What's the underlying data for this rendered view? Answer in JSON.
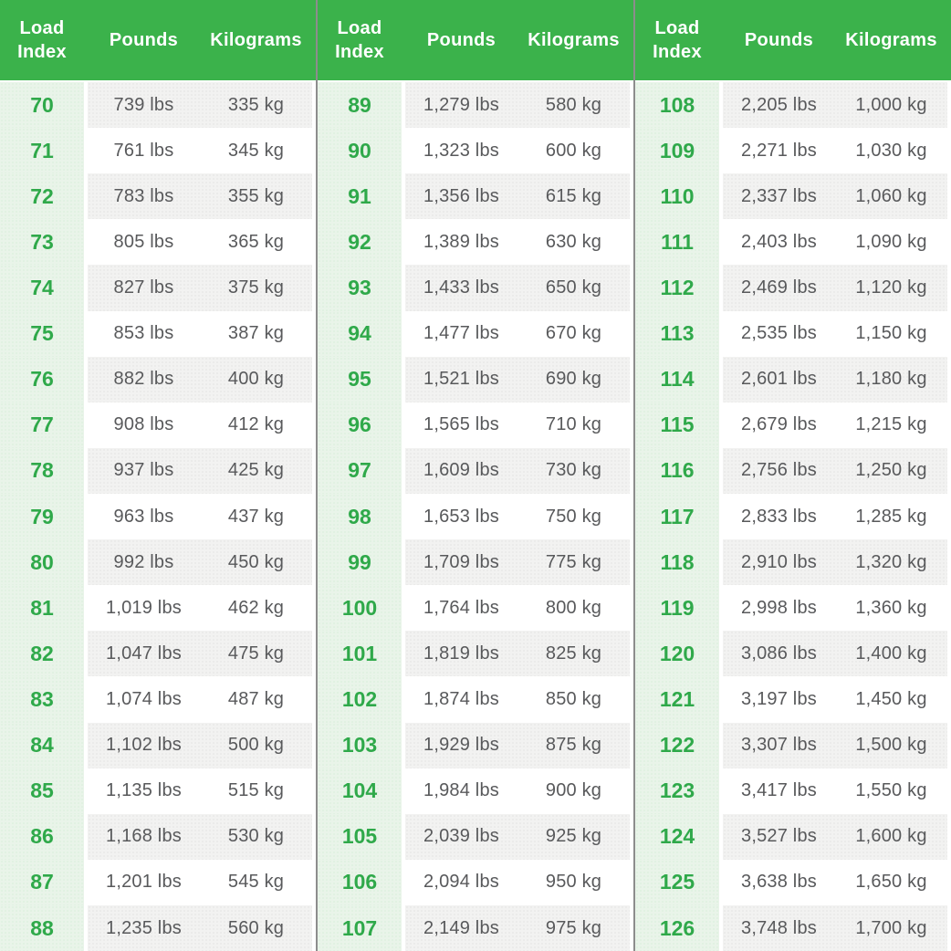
{
  "colors": {
    "header_green": "#3bb24b",
    "index_number_green": "#2fa94a",
    "index_column_light_green": "#e9f4e9",
    "stripe_gray": "#f2f2f1",
    "value_text_gray": "#58595b",
    "divider_gray": "#8d8d8d",
    "header_text": "#ffffff"
  },
  "headers": {
    "load_index": "Load Index",
    "pounds": "Pounds",
    "kilograms": "Kilograms"
  },
  "chart_data": {
    "type": "table",
    "column_headers": [
      "Load Index",
      "Pounds",
      "Kilograms"
    ],
    "layout": "three side-by-side column groups separated by vertical gray dividers; rows alternate white and light gray; load-index column tinted light green",
    "groups": [
      {
        "rows": [
          {
            "load_index": "70",
            "pounds": "739 lbs",
            "kilograms": "335 kg"
          },
          {
            "load_index": "71",
            "pounds": "761 lbs",
            "kilograms": "345 kg"
          },
          {
            "load_index": "72",
            "pounds": "783 lbs",
            "kilograms": "355 kg"
          },
          {
            "load_index": "73",
            "pounds": "805 lbs",
            "kilograms": "365 kg"
          },
          {
            "load_index": "74",
            "pounds": "827 lbs",
            "kilograms": "375 kg"
          },
          {
            "load_index": "75",
            "pounds": "853 lbs",
            "kilograms": "387 kg"
          },
          {
            "load_index": "76",
            "pounds": "882 lbs",
            "kilograms": "400 kg"
          },
          {
            "load_index": "77",
            "pounds": "908 lbs",
            "kilograms": "412 kg"
          },
          {
            "load_index": "78",
            "pounds": "937 lbs",
            "kilograms": "425 kg"
          },
          {
            "load_index": "79",
            "pounds": "963 lbs",
            "kilograms": "437 kg"
          },
          {
            "load_index": "80",
            "pounds": "992 lbs",
            "kilograms": "450 kg"
          },
          {
            "load_index": "81",
            "pounds": "1,019 lbs",
            "kilograms": "462 kg"
          },
          {
            "load_index": "82",
            "pounds": "1,047 lbs",
            "kilograms": "475 kg"
          },
          {
            "load_index": "83",
            "pounds": "1,074 lbs",
            "kilograms": "487 kg"
          },
          {
            "load_index": "84",
            "pounds": "1,102 lbs",
            "kilograms": "500 kg"
          },
          {
            "load_index": "85",
            "pounds": "1,135 lbs",
            "kilograms": "515 kg"
          },
          {
            "load_index": "86",
            "pounds": "1,168 lbs",
            "kilograms": "530 kg"
          },
          {
            "load_index": "87",
            "pounds": "1,201 lbs",
            "kilograms": "545 kg"
          },
          {
            "load_index": "88",
            "pounds": "1,235 lbs",
            "kilograms": "560 kg"
          }
        ]
      },
      {
        "rows": [
          {
            "load_index": "89",
            "pounds": "1,279 lbs",
            "kilograms": "580 kg"
          },
          {
            "load_index": "90",
            "pounds": "1,323 lbs",
            "kilograms": "600 kg"
          },
          {
            "load_index": "91",
            "pounds": "1,356 lbs",
            "kilograms": "615 kg"
          },
          {
            "load_index": "92",
            "pounds": "1,389 lbs",
            "kilograms": "630 kg"
          },
          {
            "load_index": "93",
            "pounds": "1,433 lbs",
            "kilograms": "650 kg"
          },
          {
            "load_index": "94",
            "pounds": "1,477 lbs",
            "kilograms": "670 kg"
          },
          {
            "load_index": "95",
            "pounds": "1,521 lbs",
            "kilograms": "690 kg"
          },
          {
            "load_index": "96",
            "pounds": "1,565 lbs",
            "kilograms": "710 kg"
          },
          {
            "load_index": "97",
            "pounds": "1,609 lbs",
            "kilograms": "730 kg"
          },
          {
            "load_index": "98",
            "pounds": "1,653 lbs",
            "kilograms": "750 kg"
          },
          {
            "load_index": "99",
            "pounds": "1,709 lbs",
            "kilograms": "775 kg"
          },
          {
            "load_index": "100",
            "pounds": "1,764 lbs",
            "kilograms": "800 kg"
          },
          {
            "load_index": "101",
            "pounds": "1,819 lbs",
            "kilograms": "825 kg"
          },
          {
            "load_index": "102",
            "pounds": "1,874 lbs",
            "kilograms": "850 kg"
          },
          {
            "load_index": "103",
            "pounds": "1,929 lbs",
            "kilograms": "875 kg"
          },
          {
            "load_index": "104",
            "pounds": "1,984 lbs",
            "kilograms": "900 kg"
          },
          {
            "load_index": "105",
            "pounds": "2,039 lbs",
            "kilograms": "925 kg"
          },
          {
            "load_index": "106",
            "pounds": "2,094 lbs",
            "kilograms": "950 kg"
          },
          {
            "load_index": "107",
            "pounds": "2,149 lbs",
            "kilograms": "975 kg"
          }
        ]
      },
      {
        "rows": [
          {
            "load_index": "108",
            "pounds": "2,205 lbs",
            "kilograms": "1,000 kg"
          },
          {
            "load_index": "109",
            "pounds": "2,271 lbs",
            "kilograms": "1,030 kg"
          },
          {
            "load_index": "110",
            "pounds": "2,337 lbs",
            "kilograms": "1,060 kg"
          },
          {
            "load_index": "111",
            "pounds": "2,403 lbs",
            "kilograms": "1,090 kg"
          },
          {
            "load_index": "112",
            "pounds": "2,469 lbs",
            "kilograms": "1,120 kg"
          },
          {
            "load_index": "113",
            "pounds": "2,535 lbs",
            "kilograms": "1,150 kg"
          },
          {
            "load_index": "114",
            "pounds": "2,601 lbs",
            "kilograms": "1,180 kg"
          },
          {
            "load_index": "115",
            "pounds": "2,679 lbs",
            "kilograms": "1,215 kg"
          },
          {
            "load_index": "116",
            "pounds": "2,756 lbs",
            "kilograms": "1,250 kg"
          },
          {
            "load_index": "117",
            "pounds": "2,833 lbs",
            "kilograms": "1,285 kg"
          },
          {
            "load_index": "118",
            "pounds": "2,910 lbs",
            "kilograms": "1,320 kg"
          },
          {
            "load_index": "119",
            "pounds": "2,998 lbs",
            "kilograms": "1,360 kg"
          },
          {
            "load_index": "120",
            "pounds": "3,086 lbs",
            "kilograms": "1,400 kg"
          },
          {
            "load_index": "121",
            "pounds": "3,197 lbs",
            "kilograms": "1,450 kg"
          },
          {
            "load_index": "122",
            "pounds": "3,307 lbs",
            "kilograms": "1,500 kg"
          },
          {
            "load_index": "123",
            "pounds": "3,417 lbs",
            "kilograms": "1,550 kg"
          },
          {
            "load_index": "124",
            "pounds": "3,527 lbs",
            "kilograms": "1,600 kg"
          },
          {
            "load_index": "125",
            "pounds": "3,638 lbs",
            "kilograms": "1,650 kg"
          },
          {
            "load_index": "126",
            "pounds": "3,748 lbs",
            "kilograms": "1,700 kg"
          }
        ]
      }
    ]
  }
}
